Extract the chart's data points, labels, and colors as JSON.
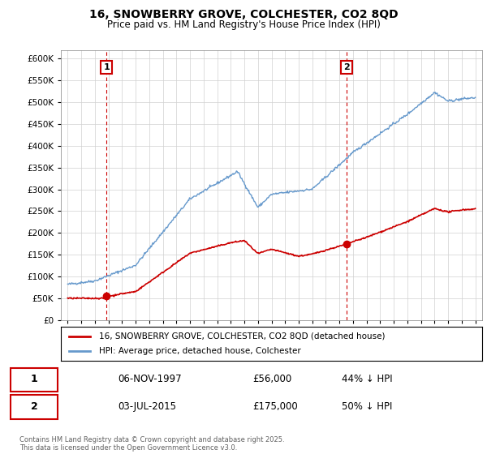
{
  "title": "16, SNOWBERRY GROVE, COLCHESTER, CO2 8QD",
  "subtitle": "Price paid vs. HM Land Registry's House Price Index (HPI)",
  "legend_line1": "16, SNOWBERRY GROVE, COLCHESTER, CO2 8QD (detached house)",
  "legend_line2": "HPI: Average price, detached house, Colchester",
  "annotation1_label": "1",
  "annotation1_date": "06-NOV-1997",
  "annotation1_price": "£56,000",
  "annotation1_hpi": "44% ↓ HPI",
  "annotation2_label": "2",
  "annotation2_date": "03-JUL-2015",
  "annotation2_price": "£175,000",
  "annotation2_hpi": "50% ↓ HPI",
  "copyright": "Contains HM Land Registry data © Crown copyright and database right 2025.\nThis data is licensed under the Open Government Licence v3.0.",
  "hpi_color": "#6699cc",
  "price_color": "#cc0000",
  "annotation_color": "#cc0000",
  "ylim": [
    0,
    620000
  ],
  "yticks": [
    0,
    50000,
    100000,
    150000,
    200000,
    250000,
    300000,
    350000,
    400000,
    450000,
    500000,
    550000,
    600000
  ],
  "xlim_start": 1994.5,
  "xlim_end": 2025.5,
  "purchase1_x": 1997.85,
  "purchase1_y": 56000,
  "purchase2_x": 2015.5,
  "purchase2_y": 175000
}
